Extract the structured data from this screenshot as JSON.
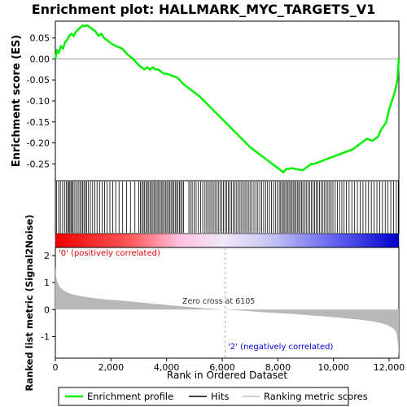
{
  "chart_data": {
    "type": "line",
    "title": "Enrichment plot: HALLMARK_MYC_TARGETS_V1",
    "top_panel": {
      "ylabel": "Enrichment score (ES)",
      "ylim": [
        -0.29,
        0.09
      ],
      "yticks": [
        -0.25,
        -0.2,
        -0.15,
        -0.1,
        -0.05,
        0.0,
        0.05
      ],
      "ytick_labels": [
        "-0.25",
        "-0.20",
        "-0.15",
        "-0.10",
        "-0.05",
        "0.00",
        "0.05"
      ],
      "series": [
        {
          "name": "Enrichment profile",
          "color": "#00ee00",
          "x": [
            0,
            60,
            120,
            200,
            280,
            350,
            420,
            500,
            580,
            660,
            740,
            820,
            900,
            980,
            1060,
            1150,
            1250,
            1350,
            1450,
            1550,
            1650,
            1750,
            1850,
            1950,
            2050,
            2200,
            2400,
            2600,
            2800,
            3000,
            3100,
            3200,
            3300,
            3400,
            3500,
            3600,
            3700,
            3800,
            3900,
            4000,
            4200,
            4400,
            4600,
            4800,
            5000,
            5200,
            5500,
            5800,
            6100,
            6400,
            6700,
            7000,
            7300,
            7600,
            7900,
            8100,
            8200,
            8300,
            8400,
            8500,
            8700,
            8900,
            9000,
            9100,
            9200,
            9300,
            9500,
            9700,
            9900,
            10100,
            10300,
            10500,
            10700,
            10900,
            11100,
            11200,
            11400,
            11600,
            11700,
            11800,
            11900,
            12000,
            12100,
            12200,
            12300,
            12350
          ],
          "y": [
            0.0,
            0.02,
            0.015,
            0.03,
            0.025,
            0.04,
            0.045,
            0.055,
            0.06,
            0.055,
            0.065,
            0.07,
            0.075,
            0.08,
            0.078,
            0.08,
            0.075,
            0.07,
            0.065,
            0.055,
            0.06,
            0.05,
            0.045,
            0.04,
            0.035,
            0.03,
            0.025,
            0.01,
            0.0,
            -0.015,
            -0.02,
            -0.025,
            -0.02,
            -0.025,
            -0.02,
            -0.025,
            -0.025,
            -0.03,
            -0.035,
            -0.035,
            -0.04,
            -0.045,
            -0.06,
            -0.07,
            -0.08,
            -0.09,
            -0.11,
            -0.13,
            -0.15,
            -0.17,
            -0.19,
            -0.21,
            -0.225,
            -0.24,
            -0.255,
            -0.265,
            -0.27,
            -0.262,
            -0.262,
            -0.26,
            -0.263,
            -0.265,
            -0.26,
            -0.255,
            -0.25,
            -0.25,
            -0.245,
            -0.24,
            -0.235,
            -0.23,
            -0.225,
            -0.22,
            -0.215,
            -0.205,
            -0.195,
            -0.19,
            -0.195,
            -0.185,
            -0.17,
            -0.16,
            -0.15,
            -0.12,
            -0.1,
            -0.08,
            -0.05,
            0.003
          ]
        }
      ]
    },
    "hits": [
      40,
      120,
      180,
      260,
      330,
      390,
      440,
      480,
      520,
      560,
      600,
      640,
      700,
      760,
      820,
      880,
      930,
      980,
      1030,
      1080,
      1130,
      1190,
      1260,
      1340,
      1420,
      1500,
      1590,
      1680,
      1770,
      1860,
      1960,
      2060,
      2170,
      2290,
      2420,
      2560,
      2700,
      2860,
      3000,
      3060,
      3110,
      3160,
      3210,
      3260,
      3310,
      3360,
      3410,
      3460,
      3510,
      3560,
      3610,
      3660,
      3710,
      3760,
      3810,
      3860,
      3910,
      3960,
      4010,
      4060,
      4110,
      4160,
      4210,
      4260,
      4310,
      4360,
      4410,
      4460,
      4510,
      4560,
      4610,
      4800,
      4860,
      4920,
      4990,
      5060,
      5140,
      5220,
      5300,
      5380,
      5440,
      5500,
      5560,
      5620,
      5680,
      5740,
      5800,
      5860,
      5920,
      5980,
      6040,
      6100,
      6160,
      6220,
      6280,
      6340,
      6400,
      6460,
      6520,
      6580,
      6640,
      6700,
      6760,
      6820,
      6880,
      6940,
      7000,
      7070,
      7140,
      7210,
      7280,
      7350,
      7420,
      7490,
      7560,
      7630,
      7700,
      7770,
      7840,
      7910,
      7980,
      8050,
      8100,
      8150,
      8200,
      8250,
      8300,
      8350,
      8400,
      8450,
      8500,
      8550,
      8600,
      8650,
      8700,
      8750,
      8800,
      8850,
      8900,
      8960,
      9020,
      9080,
      9140,
      9200,
      9260,
      9320,
      9380,
      9440,
      9500,
      9560,
      9620,
      9680,
      9740,
      9800,
      9860,
      9920,
      9980,
      10060,
      10140,
      10220,
      10300,
      10380,
      10460,
      10560,
      10660,
      10760,
      10860,
      10960,
      11060,
      11160,
      11260,
      11360,
      11460,
      11560,
      11660,
      11760,
      11860,
      11960,
      12060,
      12160,
      12260,
      12330
    ],
    "bottom_panel": {
      "ylabel": "Ranked list metric (Signal2Noise)",
      "ylim": [
        -1.8,
        2.3
      ],
      "yticks": [
        -1,
        0,
        1,
        2
      ],
      "ytick_labels": [
        "-1",
        "0",
        "1",
        "2"
      ],
      "metric_curve": {
        "x": [
          0,
          30,
          80,
          150,
          250,
          400,
          600,
          900,
          1200,
          1600,
          2000,
          2500,
          3000,
          3500,
          4000,
          4500,
          5000,
          5500,
          6105,
          6500,
          7000,
          7500,
          8000,
          8500,
          9000,
          9500,
          10000,
          10500,
          11000,
          11400,
          11700,
          11900,
          12050,
          12150,
          12230,
          12280,
          12320,
          12350
        ],
        "y": [
          1.6,
          1.2,
          1.0,
          0.85,
          0.75,
          0.65,
          0.57,
          0.5,
          0.45,
          0.4,
          0.36,
          0.32,
          0.27,
          0.22,
          0.17,
          0.12,
          0.08,
          0.04,
          0.0,
          -0.03,
          -0.06,
          -0.1,
          -0.13,
          -0.16,
          -0.2,
          -0.24,
          -0.28,
          -0.33,
          -0.38,
          -0.44,
          -0.5,
          -0.56,
          -0.63,
          -0.7,
          -0.8,
          -0.95,
          -1.3,
          -1.75
        ]
      },
      "annotations": {
        "positive": "'0' (positively correlated)",
        "zero_cross": "Zero cross at 6105",
        "negative": "'2' (negatively correlated)"
      }
    },
    "zero_cross_x": 6105,
    "xlabel": "Rank in Ordered Dataset",
    "xlim": [
      0,
      12350
    ],
    "xticks": [
      0,
      2000,
      4000,
      6000,
      8000,
      10000,
      12000
    ],
    "xtick_labels": [
      "0",
      "2,000",
      "4,000",
      "6,000",
      "8,000",
      "10,000",
      "12,000"
    ],
    "legend": {
      "placement": "bottom",
      "entries": [
        {
          "label": "Enrichment profile",
          "color": "#00ee00"
        },
        {
          "label": "Hits",
          "color": "#000000"
        },
        {
          "label": "Ranking metric scores",
          "color": "#c0c0c0"
        }
      ]
    },
    "colors": {
      "positive_text": "#dd0000",
      "negative_text": "#0000dd",
      "metric_fill": "#b8b8b8",
      "hit_line": "#000000"
    }
  }
}
